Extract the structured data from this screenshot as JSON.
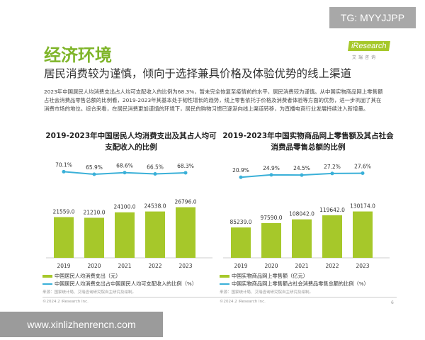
{
  "watermark": "TG: MYYJJPP",
  "logo": {
    "text": "iResearch",
    "sub": "艾瑞咨询"
  },
  "header": {
    "title": "经济环境",
    "subtitle": "居民消费较为谨慎，倾向于选择兼具价格及体验优势的线上渠道"
  },
  "body": "2023年中国居民人均消费支出占人均可支配收入的比例为68.3%，暂未完全恢复至疫情前的水平，居民消费较为谨慎。从中国实物商品网上零售额占社会消费品零售总额的比例看，2019-2023年其基本处于韧性增长的趋势，线上零售依托于价格及消费者体验等方面的优势，进一步巩固了其在消费市场的地位。综合来看，在居民消费更加谨慎的环境下，居民的购物习惯已逐渐向线上渠道转移，为直播电商行业发展持续注入新增量。",
  "colors": {
    "bar": "#a6c82a",
    "line": "#3ab0d8",
    "title": "#7fb52a"
  },
  "chart_data": [
    {
      "type": "bar+line",
      "title": "2019-2023年中国居民人均消费支出及其占人均可支配收入的比例",
      "categories": [
        "2019",
        "2020",
        "2021",
        "2022",
        "2023"
      ],
      "series": [
        {
          "name": "中国居民人均消费支出（元）",
          "type": "bar",
          "values": [
            21559.0,
            21210.0,
            24100.0,
            24538.0,
            26796.0
          ],
          "labels": [
            "21559.0",
            "21210.0",
            "24100.0",
            "24538.0",
            "26796.0"
          ]
        },
        {
          "name": "中国居民人均消费支出占中国居民人均可支配收入的比例（%）",
          "type": "line",
          "values": [
            70.1,
            65.9,
            68.6,
            66.5,
            68.3
          ],
          "labels": [
            "70.1%",
            "65.9%",
            "68.6%",
            "66.5%",
            "68.3%"
          ]
        }
      ],
      "legend": "bottom",
      "source": "来源：国家统计局、艾瑞咨询研究院自主研究及绘制。",
      "copyright": "©2024.2 iResearch Inc."
    },
    {
      "type": "bar+line",
      "title": "2019-2023年中国实物商品网上零售额及其占社会消费品零售总额的比例",
      "categories": [
        "2019",
        "2020",
        "2021",
        "2022",
        "2023"
      ],
      "series": [
        {
          "name": "中国实物商品网上零售额（亿元）",
          "type": "bar",
          "values": [
            85239.0,
            97590.0,
            108042.0,
            119642.0,
            130174.0
          ],
          "labels": [
            "85239.0",
            "97590.0",
            "108042.0",
            "119642.0",
            "130174.0"
          ]
        },
        {
          "name": "中国实物商品网上零售额占社会消费品零售总额的比例（%）",
          "type": "line",
          "values": [
            20.9,
            24.9,
            24.5,
            27.2,
            27.6
          ],
          "labels": [
            "20.9%",
            "24.9%",
            "24.5%",
            "27.2%",
            "27.6%"
          ]
        }
      ],
      "legend": "bottom",
      "source": "来源：国家统计局、艾瑞咨询研究院自主研究及绘制。",
      "copyright": "©2024.2 iResearch Inc."
    }
  ],
  "page_number": "6",
  "footer_url": "www.xinlizhenrencn.com"
}
